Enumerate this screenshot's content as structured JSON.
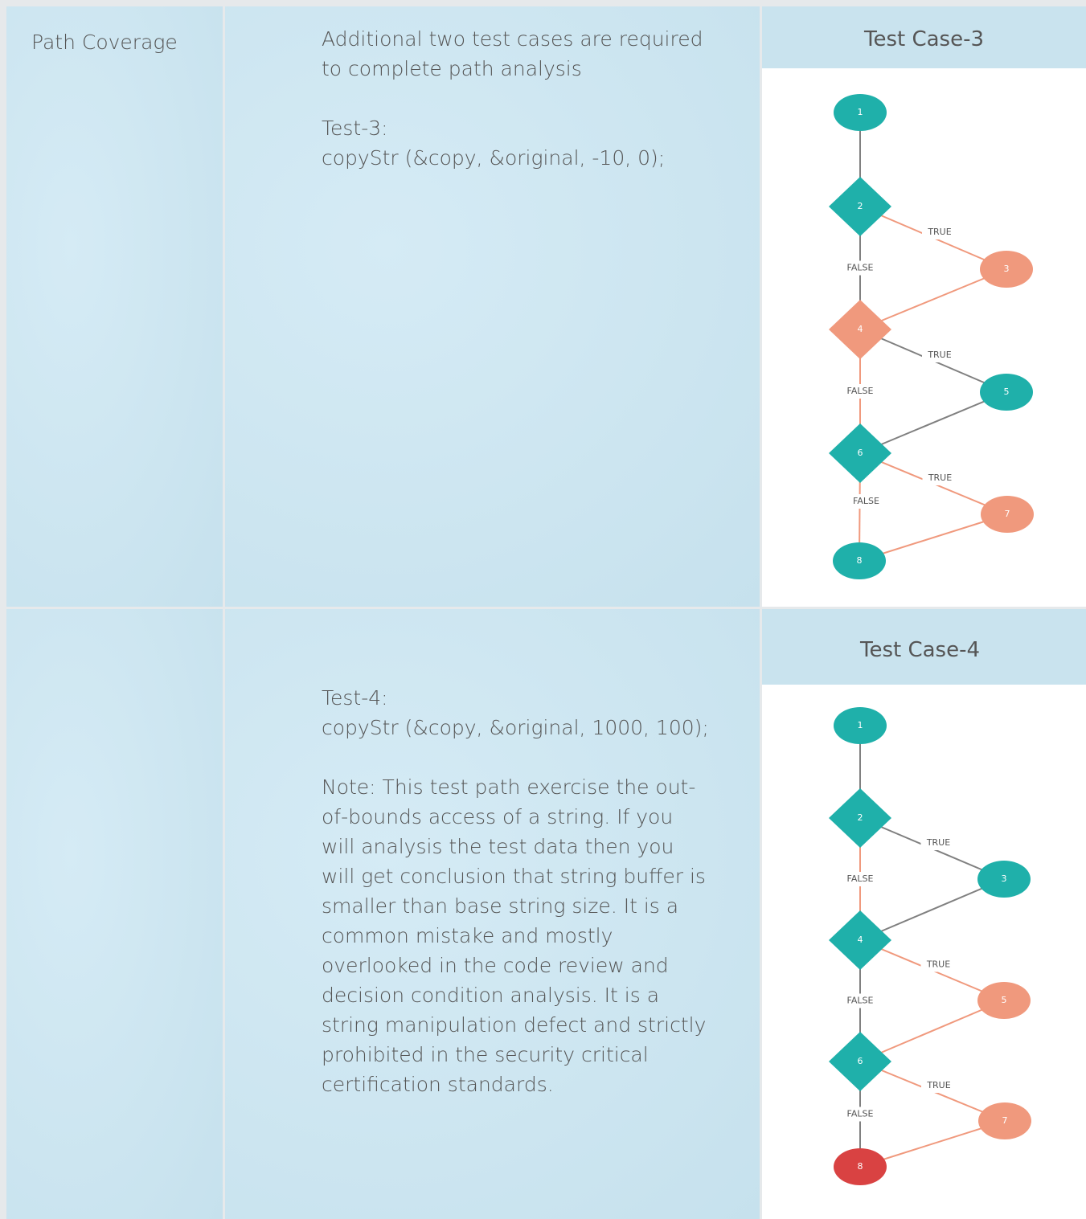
{
  "rows": [
    {
      "label": "Path Coverage",
      "paragraphs": [
        [
          "Additional two test cases are required to complete path analysis"
        ],
        [
          "Test-3:",
          "copyStr (&copy, &original, -10, 0);"
        ]
      ],
      "diagram": {
        "title": "Test Case-3",
        "nodes": [
          {
            "label": "1",
            "color": "#1fb0aa"
          },
          {
            "label": "2",
            "color": "#1fb0aa"
          },
          {
            "label": "3",
            "color": "#f0997d"
          },
          {
            "label": "4",
            "color": "#f0997d"
          },
          {
            "label": "5",
            "color": "#1fb0aa"
          },
          {
            "label": "6",
            "color": "#1fb0aa"
          },
          {
            "label": "7",
            "color": "#f0997d"
          },
          {
            "label": "8",
            "color": "#1fb0aa"
          }
        ],
        "edges": [
          {
            "from": "1",
            "to": "2",
            "color": "#808080"
          },
          {
            "from": "2",
            "to": "3",
            "color": "#f0997d",
            "label": "TRUE"
          },
          {
            "from": "2",
            "to": "4",
            "color": "#808080",
            "label": "FALSE"
          },
          {
            "from": "3",
            "to": "4",
            "color": "#f0997d"
          },
          {
            "from": "4",
            "to": "5",
            "color": "#808080",
            "label": "TRUE"
          },
          {
            "from": "4",
            "to": "6",
            "color": "#f0997d",
            "label": "FALSE"
          },
          {
            "from": "5",
            "to": "6",
            "color": "#808080"
          },
          {
            "from": "6",
            "to": "7",
            "color": "#f0997d",
            "label": "TRUE"
          },
          {
            "from": "6",
            "to": "8",
            "color": "#f0997d",
            "label": "FALSE"
          },
          {
            "from": "7",
            "to": "8",
            "color": "#f0997d"
          }
        ]
      }
    },
    {
      "paragraphs": [
        [
          "Test-4:",
          "copyStr (&copy, &original, 1000, 100);"
        ],
        [
          "Note: This test path exercise the out-of-bounds access of a string. If you will analysis the test data then you will get conclusion that string buffer is smaller than base string size. It is a common mistake and mostly overlooked in the code review and decision condition analysis. It is a string manipulation defect and strictly prohibited in the security critical certification standards."
        ]
      ],
      "diagram": {
        "title": "Test Case-4",
        "nodes": [
          {
            "label": "1",
            "color": "#1fb0aa"
          },
          {
            "label": "2",
            "color": "#1fb0aa"
          },
          {
            "label": "3",
            "color": "#1fb0aa"
          },
          {
            "label": "4",
            "color": "#1fb0aa"
          },
          {
            "label": "5",
            "color": "#f0997d"
          },
          {
            "label": "6",
            "color": "#1fb0aa"
          },
          {
            "label": "7",
            "color": "#f0997d"
          },
          {
            "label": "8",
            "color": "#d94242"
          }
        ],
        "edges": [
          {
            "from": "1",
            "to": "2",
            "color": "#808080"
          },
          {
            "from": "2",
            "to": "3",
            "color": "#808080",
            "label": "TRUE"
          },
          {
            "from": "2",
            "to": "4",
            "color": "#f0997d",
            "label": "FALSE"
          },
          {
            "from": "3",
            "to": "4",
            "color": "#808080"
          },
          {
            "from": "4",
            "to": "5",
            "color": "#f0997d",
            "label": "TRUE"
          },
          {
            "from": "4",
            "to": "6",
            "color": "#808080",
            "label": "FALSE"
          },
          {
            "from": "5",
            "to": "6",
            "color": "#f0997d"
          },
          {
            "from": "6",
            "to": "7",
            "color": "#f0997d",
            "label": "TRUE"
          },
          {
            "from": "6",
            "to": "8",
            "color": "#808080",
            "label": "FALSE"
          },
          {
            "from": "7",
            "to": "8",
            "color": "#f0997d"
          }
        ]
      }
    }
  ]
}
